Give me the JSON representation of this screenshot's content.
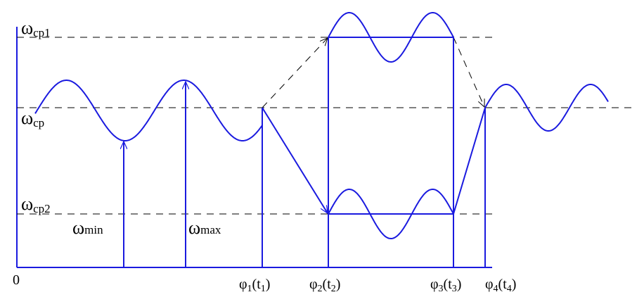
{
  "axis_labels": {
    "omega_cp1": {
      "main": "ω",
      "sub": "cp1"
    },
    "omega_cp": {
      "main": "ω",
      "sub": "cp"
    },
    "omega_cp2": {
      "main": "ω",
      "sub": "cp2"
    },
    "omega_min": {
      "main": "ω",
      "sub": "min"
    },
    "omega_max": {
      "main": "ω",
      "sub": "max"
    },
    "origin": "0"
  },
  "time_labels": [
    {
      "main": "φ",
      "sub": "1",
      "open": "(t",
      "sub2": "1",
      "close": ")"
    },
    {
      "main": "φ",
      "sub": "2",
      "open": "(t",
      "sub2": "2",
      "close": ")"
    },
    {
      "main": "φ",
      "sub": "3",
      "open": "(t",
      "sub2": "3",
      "close": ")"
    },
    {
      "main": "φ",
      "sub": "4",
      "open": "(t",
      "sub2": "4",
      "close": ")"
    }
  ]
}
